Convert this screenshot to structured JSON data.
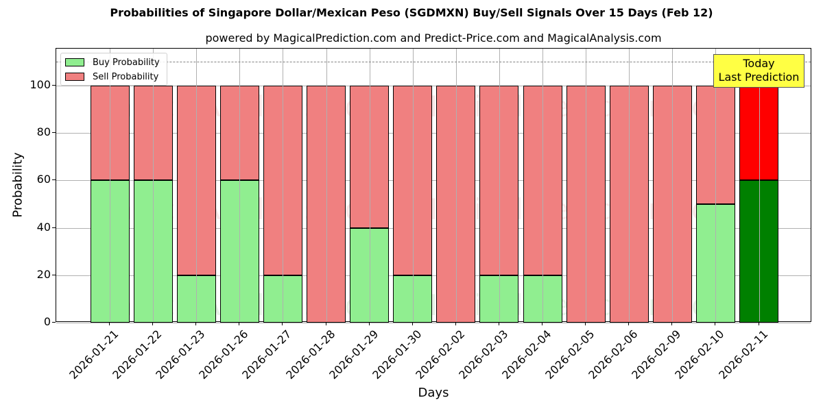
{
  "chart_data": {
    "type": "bar",
    "stacked": true,
    "title": "Probabilities of Singapore Dollar/Mexican Peso (SGDMXN) Buy/Sell Signals Over 15 Days (Feb 12)",
    "subtitle": "powered by MagicalPrediction.com and Predict-Price.com and MagicalAnalysis.com",
    "xlabel": "Days",
    "ylabel": "Probability",
    "ylim": [
      0,
      115
    ],
    "yticks": [
      0,
      20,
      40,
      60,
      80,
      100
    ],
    "grid": true,
    "legend_position": "upper left",
    "reference_line": {
      "y": 110,
      "style": "dashed",
      "color": "#808080"
    },
    "categories": [
      "2026-01-21",
      "2026-01-22",
      "2026-01-23",
      "2026-01-26",
      "2026-01-27",
      "2026-01-28",
      "2026-01-29",
      "2026-01-30",
      "2026-02-02",
      "2026-02-03",
      "2026-02-04",
      "2026-02-05",
      "2026-02-06",
      "2026-02-09",
      "2026-02-10",
      "2026-02-11"
    ],
    "series": [
      {
        "name": "Buy Probability",
        "color": "#90ee90",
        "values": [
          60,
          60,
          20,
          60,
          20,
          0,
          40,
          20,
          0,
          20,
          20,
          0,
          0,
          0,
          50,
          60
        ]
      },
      {
        "name": "Sell Probability",
        "color": "#f08080",
        "values": [
          40,
          40,
          80,
          40,
          80,
          100,
          60,
          80,
          100,
          80,
          80,
          100,
          100,
          100,
          50,
          40
        ]
      }
    ],
    "highlight": {
      "index": 15,
      "buy_color": "#008000",
      "sell_color": "#ff0000"
    },
    "annotation": {
      "line1": "Today",
      "line2": "Last Prediction",
      "background": "#ffff44"
    },
    "watermarks": [
      "MagicalAnalysis.com",
      "MagicalPrediction.com"
    ]
  }
}
